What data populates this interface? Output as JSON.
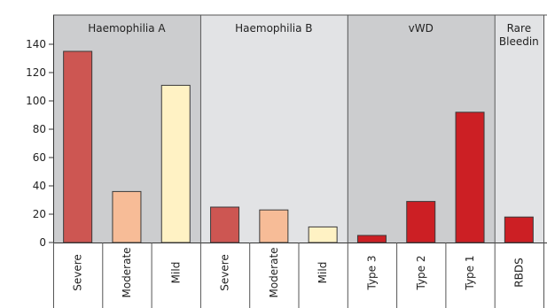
{
  "chart_data": {
    "type": "bar",
    "ylim": [
      0,
      150
    ],
    "yticks": [
      0,
      20,
      40,
      60,
      80,
      100,
      120,
      140
    ],
    "groups": [
      {
        "label": "Haemophilia A",
        "background": "#cccdcf",
        "categories": [
          "Severe",
          "Moderate",
          "Mild"
        ],
        "values": [
          135,
          36,
          111
        ],
        "colors": [
          "#cd5652",
          "#f7bc97",
          "#fff2c4"
        ]
      },
      {
        "label": "Haemophilia B",
        "background": "#e2e3e5",
        "categories": [
          "Severe",
          "Moderate",
          "Mild"
        ],
        "values": [
          25,
          23,
          11
        ],
        "colors": [
          "#cd5652",
          "#f7bc97",
          "#fff2c4"
        ]
      },
      {
        "label": "vWD",
        "background": "#cccdcf",
        "categories": [
          "Type 3",
          "Type 2",
          "Type 1"
        ],
        "values": [
          5,
          29,
          92
        ],
        "colors": [
          "#cc1f24",
          "#cc1f24",
          "#cc1f24"
        ]
      },
      {
        "label": "Rare Bleeding",
        "label_lines": [
          "Rare",
          "Bleedin"
        ],
        "background": "#e2e3e5",
        "categories": [
          "RBDS"
        ],
        "values": [
          18
        ],
        "colors": [
          "#cc1f24"
        ]
      }
    ],
    "grid": false,
    "legend": "none"
  }
}
